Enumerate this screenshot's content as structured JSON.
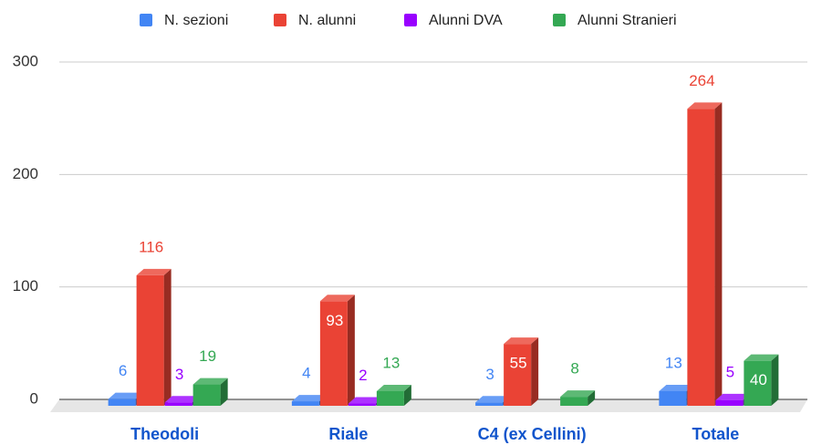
{
  "chart_data": {
    "type": "bar3d",
    "categories": [
      "Theodoli",
      "Riale",
      "C4 (ex Cellini)",
      "Totale"
    ],
    "series": [
      {
        "name": "N. sezioni",
        "color": "#4285f4",
        "values": [
          6,
          4,
          3,
          13
        ]
      },
      {
        "name": "N. alunni",
        "color": "#ea4335",
        "values": [
          116,
          93,
          55,
          264
        ]
      },
      {
        "name": "Alunni DVA",
        "color": "#9900ff",
        "values": [
          3,
          2,
          null,
          5
        ]
      },
      {
        "name": "Alunni Stranieri",
        "color": "#34a853",
        "values": [
          19,
          13,
          8,
          40
        ]
      }
    ],
    "ylim": [
      0,
      300
    ],
    "yticks": [
      0,
      100,
      200,
      300
    ],
    "grid": true,
    "legend": "top",
    "category_label_color": "#1155cc"
  }
}
